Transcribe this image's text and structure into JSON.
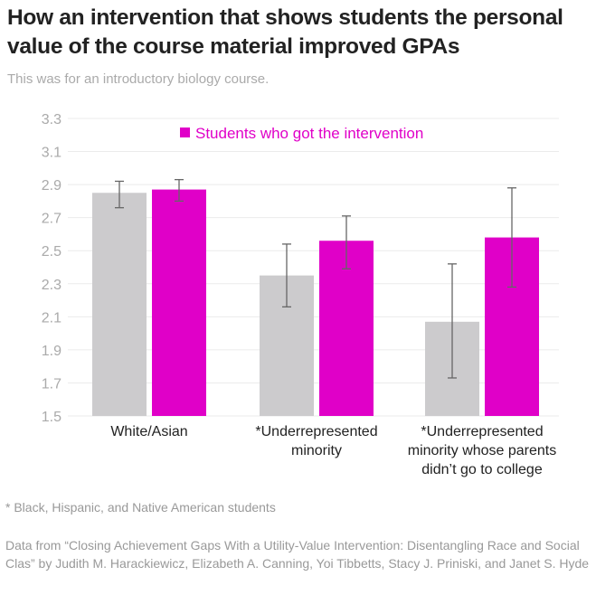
{
  "chart_data": {
    "type": "bar",
    "title": "How an intervention that shows students the personal value of the course material improved GPAs",
    "subtitle": "This was for an introductory biology course.",
    "categories": [
      "White/Asian",
      "*Underrepresented minority",
      "*Underrepresented minority whose parents didn't go to college"
    ],
    "category_lines": [
      [
        "White/Asian"
      ],
      [
        "*Underrepresented",
        "minority"
      ],
      [
        "*Underrepresented",
        "minority whose parents",
        "didn’t go to college"
      ]
    ],
    "series": [
      {
        "color": "#cccbcd",
        "values": [
          2.85,
          2.35,
          2.07
        ],
        "error_low": [
          2.76,
          2.16,
          1.73
        ],
        "error_high": [
          2.92,
          2.54,
          2.42
        ]
      },
      {
        "name": "Students who got the intervention",
        "color": "#e000c8",
        "values": [
          2.87,
          2.56,
          2.58
        ],
        "error_low": [
          2.8,
          2.39,
          2.28
        ],
        "error_high": [
          2.93,
          2.71,
          2.88
        ]
      }
    ],
    "ylim": [
      1.5,
      3.3
    ],
    "yticks": [
      "1.5",
      "1.7",
      "1.9",
      "2.1",
      "2.3",
      "2.5",
      "2.7",
      "2.9",
      "3.1",
      "3.3"
    ],
    "grid": true,
    "legend_placement": "top"
  },
  "footnote": "* Black, Hispanic, and Native American students",
  "source": "Data from “Closing Achievement Gaps With a Utility-Value Intervention: Disentangling Race and Social Clas” by Judith M. Harackiewicz, Elizabeth A. Canning, Yoi Tibbetts, Stacy J. Priniski, and Janet S. Hyde"
}
